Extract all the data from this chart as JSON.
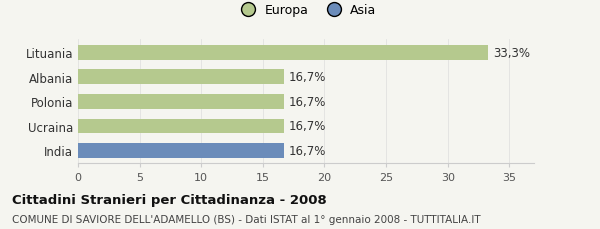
{
  "categories": [
    "India",
    "Ucraina",
    "Polonia",
    "Albania",
    "Lituania"
  ],
  "values": [
    16.7,
    16.7,
    16.7,
    16.7,
    33.3
  ],
  "bar_colors": [
    "#6b8cba",
    "#b5c98e",
    "#b5c98e",
    "#b5c98e",
    "#b5c98e"
  ],
  "labels": [
    "16,7%",
    "16,7%",
    "16,7%",
    "16,7%",
    "33,3%"
  ],
  "legend_labels": [
    "Europa",
    "Asia"
  ],
  "legend_colors": [
    "#b5c98e",
    "#6b8cba"
  ],
  "xlim": [
    0,
    37
  ],
  "xticks": [
    0,
    5,
    10,
    15,
    20,
    25,
    30,
    35
  ],
  "title_bold": "Cittadini Stranieri per Cittadinanza - 2008",
  "subtitle": "COMUNE DI SAVIORE DELL'ADAMELLO (BS) - Dati ISTAT al 1° gennaio 2008 - TUTTITALIA.IT",
  "background_color": "#f5f5f0",
  "bar_edge_color": "none",
  "label_fontsize": 8.5,
  "ytick_fontsize": 8.5,
  "xtick_fontsize": 8,
  "title_fontsize": 9.5,
  "subtitle_fontsize": 7.5
}
